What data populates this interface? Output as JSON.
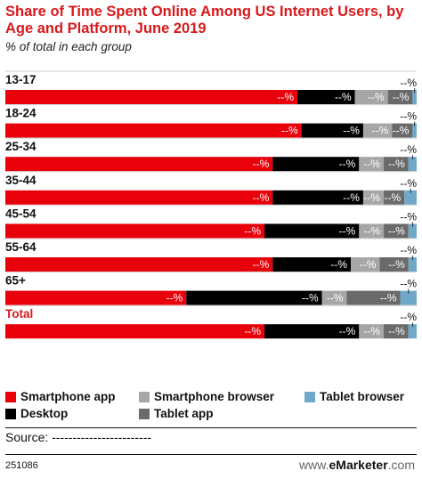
{
  "title": "Share of Time Spent Online Among US Internet Users, by Age and Platform, June 2019",
  "subtitle": "% of total in each group",
  "legend": [
    {
      "label": "Smartphone app",
      "color": "#e8000b"
    },
    {
      "label": "Smartphone browser",
      "color": "#a6a6a6"
    },
    {
      "label": "Tablet browser",
      "color": "#6fa8c8"
    },
    {
      "label": "Desktop",
      "color": "#000000"
    },
    {
      "label": "Tablet app",
      "color": "#6a6a6a"
    }
  ],
  "source": "Source: ------------------------",
  "footer_id": "251086",
  "brand_prefix": "www.",
  "brand_name": "eMarketer",
  "brand_suffix": ".com",
  "chart_data": {
    "type": "bar",
    "orientation": "horizontal",
    "stacked": true,
    "categories": [
      "13-17",
      "18-24",
      "25-34",
      "35-44",
      "45-54",
      "55-64",
      "65+",
      "Total"
    ],
    "value_label": "--%",
    "series": [
      {
        "name": "Smartphone app",
        "color": "#e8000b",
        "values": [
          71,
          72,
          65,
          65,
          63,
          65,
          44,
          63
        ]
      },
      {
        "name": "Desktop",
        "color": "#000000",
        "values": [
          14,
          15,
          21,
          22,
          23,
          19,
          33,
          23
        ]
      },
      {
        "name": "Smartphone browser",
        "color": "#a6a6a6",
        "values": [
          8,
          7,
          6,
          5,
          6,
          7,
          6,
          6
        ]
      },
      {
        "name": "Tablet app",
        "color": "#6a6a6a",
        "values": [
          6,
          5,
          6,
          5,
          6,
          7,
          13,
          6
        ]
      },
      {
        "name": "Tablet browser",
        "color": "#6fa8c8",
        "values": [
          1,
          1,
          2,
          3,
          2,
          2,
          4,
          2
        ]
      }
    ],
    "xlim": [
      0,
      100
    ],
    "grid": false,
    "legend_position": "bottom"
  }
}
